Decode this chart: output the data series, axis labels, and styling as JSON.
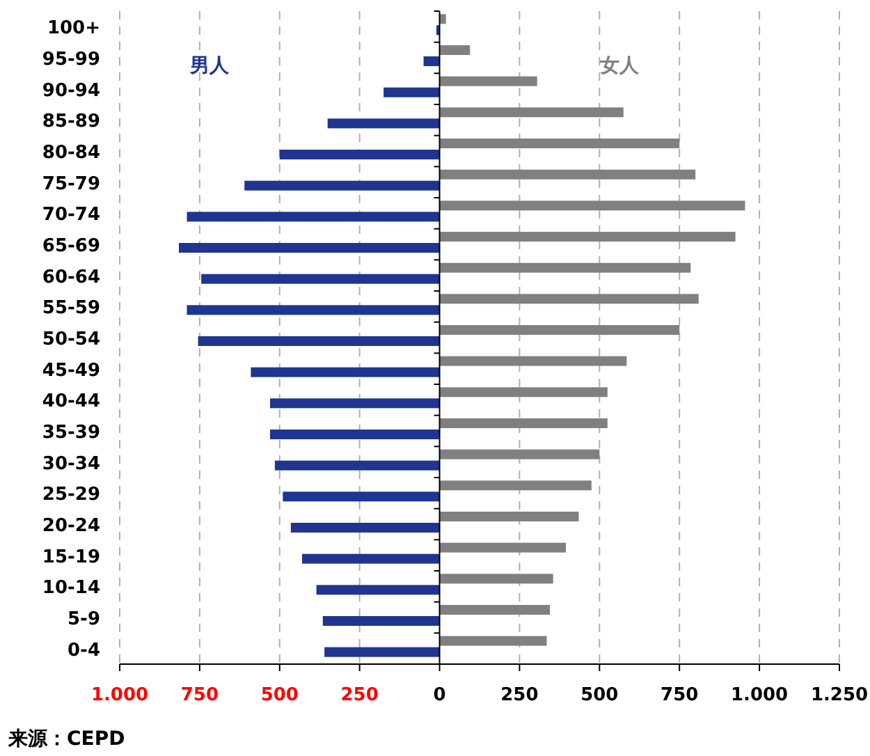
{
  "chart_data": {
    "type": "bar",
    "orientation": "horizontal",
    "categories": [
      "100+",
      "95-99",
      "90-94",
      "85-89",
      "80-84",
      "75-79",
      "70-74",
      "65-69",
      "60-64",
      "55-59",
      "50-54",
      "45-49",
      "40-44",
      "35-39",
      "30-34",
      "25-29",
      "20-24",
      "15-19",
      "10-14",
      "5-9",
      "0-4"
    ],
    "series": [
      {
        "name": "男人",
        "color": "#1f3590",
        "values": [
          -10,
          -50,
          -175,
          -350,
          -500,
          -610,
          -790,
          -815,
          -745,
          -790,
          -755,
          -590,
          -530,
          -530,
          -515,
          -490,
          -465,
          -430,
          -385,
          -365,
          -360
        ]
      },
      {
        "name": "女人",
        "color": "#808080",
        "values": [
          20,
          95,
          305,
          575,
          750,
          800,
          955,
          925,
          785,
          810,
          750,
          585,
          525,
          525,
          500,
          475,
          435,
          395,
          355,
          345,
          335
        ]
      }
    ],
    "xlim": [
      -1000,
      1250
    ],
    "xticks": [
      {
        "value": -1000,
        "label": "1.000"
      },
      {
        "value": -750,
        "label": "750"
      },
      {
        "value": -500,
        "label": "500"
      },
      {
        "value": -250,
        "label": "250"
      },
      0,
      250,
      500,
      750,
      {
        "value": 1000,
        "label": "1.000"
      },
      {
        "value": 1250,
        "label": "1.250"
      }
    ],
    "grid": "x",
    "annotations": [
      "来源：CEPD"
    ]
  }
}
